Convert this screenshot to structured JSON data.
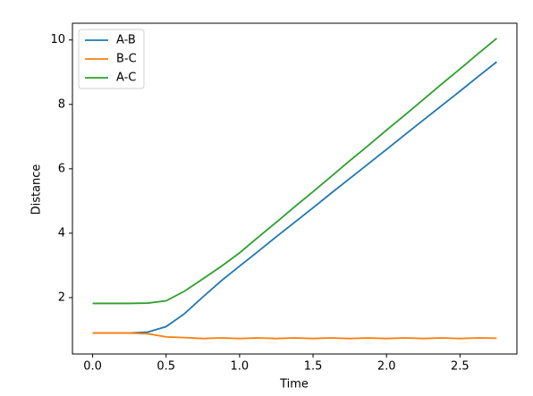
{
  "chart_data": {
    "type": "line",
    "x_label": "Time",
    "y_label": "Distance",
    "x": [
      0,
      0.125,
      0.25,
      0.375,
      0.5,
      0.625,
      0.75,
      0.875,
      1.0,
      1.125,
      1.25,
      1.375,
      1.5,
      1.625,
      1.75,
      1.875,
      2.0,
      2.125,
      2.25,
      2.375,
      2.5,
      2.625,
      2.75
    ],
    "series": [
      {
        "name": "A-B",
        "color": "#1f77b4",
        "values": [
          0.9,
          0.9,
          0.9,
          0.93,
          1.1,
          1.5,
          2.02,
          2.52,
          2.98,
          3.43,
          3.89,
          4.34,
          4.79,
          5.25,
          5.7,
          6.15,
          6.6,
          7.06,
          7.51,
          7.96,
          8.41,
          8.87,
          9.32
        ]
      },
      {
        "name": "B-C",
        "color": "#ff7f0e",
        "values": [
          0.9,
          0.9,
          0.9,
          0.88,
          0.78,
          0.76,
          0.73,
          0.75,
          0.73,
          0.75,
          0.73,
          0.75,
          0.73,
          0.75,
          0.73,
          0.75,
          0.73,
          0.75,
          0.73,
          0.75,
          0.73,
          0.75,
          0.74
        ]
      },
      {
        "name": "A-C",
        "color": "#2ca02c",
        "values": [
          1.82,
          1.82,
          1.82,
          1.83,
          1.9,
          2.2,
          2.58,
          2.97,
          3.39,
          3.87,
          4.34,
          4.82,
          5.29,
          5.77,
          6.25,
          6.72,
          7.2,
          7.67,
          8.15,
          8.63,
          9.1,
          9.58,
          10.05
        ]
      }
    ],
    "xlim": [
      -0.1375,
      2.8875
    ],
    "xticks": [
      {
        "value": 0,
        "label": "0.0"
      },
      {
        "value": 0.5,
        "label": "0.5"
      },
      {
        "value": 1,
        "label": "1.0"
      },
      {
        "value": 1.5,
        "label": "1.5"
      },
      {
        "value": 2,
        "label": "2.0"
      },
      {
        "value": 2.5,
        "label": "2.5"
      }
    ],
    "ylim": [
      0.25,
      10.52
    ],
    "yticks": [
      2,
      4,
      6,
      8,
      10
    ],
    "grid": false,
    "legend": "upper-left"
  }
}
